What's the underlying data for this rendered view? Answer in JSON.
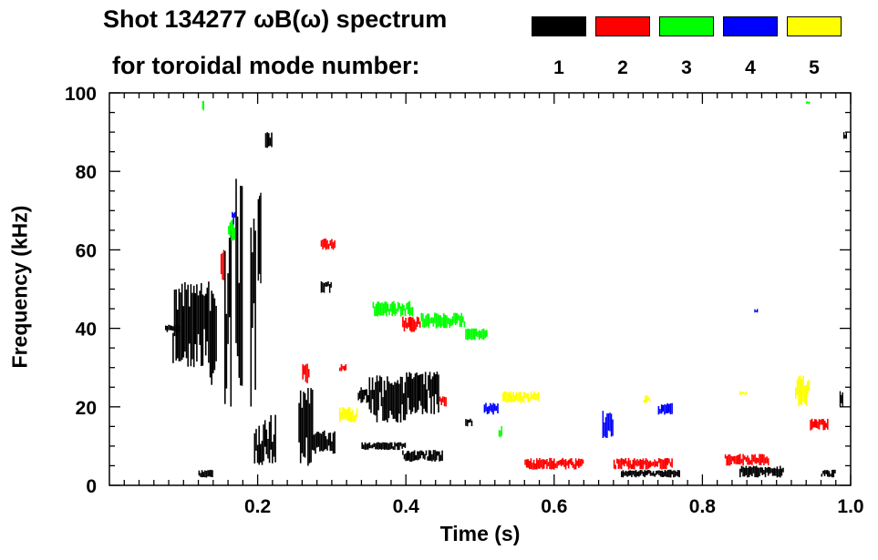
{
  "chart_data": {
    "type": "scatter",
    "title": "Shot 134277 ωB(ω) spectrum",
    "legend_title": "for toroidal mode number:",
    "xlabel": "Time (s)",
    "ylabel": "Frequency (kHz)",
    "xlim": [
      0.0,
      1.0
    ],
    "ylim": [
      0,
      100
    ],
    "xticks": [
      0.2,
      0.4,
      0.6,
      0.8,
      1.0
    ],
    "xtick_labels": [
      "0.2",
      "0.4",
      "0.6",
      "0.8",
      "1.0"
    ],
    "yticks": [
      0,
      20,
      40,
      60,
      80,
      100
    ],
    "ytick_labels": [
      "0",
      "20",
      "40",
      "60",
      "80",
      "100"
    ],
    "legend_position": "top-right",
    "series": [
      {
        "name": "1",
        "color": "#000000",
        "blobs": [
          {
            "t0": 0.085,
            "t1": 0.135,
            "f0": 30,
            "f1": 52
          },
          {
            "t0": 0.075,
            "t1": 0.095,
            "f0": 39,
            "f1": 41
          },
          {
            "t0": 0.135,
            "t1": 0.145,
            "f0": 25,
            "f1": 50
          },
          {
            "t0": 0.155,
            "t1": 0.165,
            "f0": 20,
            "f1": 65
          },
          {
            "t0": 0.17,
            "t1": 0.18,
            "f0": 25,
            "f1": 80
          },
          {
            "t0": 0.19,
            "t1": 0.198,
            "f0": 14,
            "f1": 68
          },
          {
            "t0": 0.2,
            "t1": 0.205,
            "f0": 50,
            "f1": 75
          },
          {
            "t0": 0.195,
            "t1": 0.225,
            "f0": 5,
            "f1": 18
          },
          {
            "t0": 0.21,
            "t1": 0.22,
            "f0": 86,
            "f1": 90
          },
          {
            "t0": 0.255,
            "t1": 0.275,
            "f0": 5,
            "f1": 25
          },
          {
            "t0": 0.275,
            "t1": 0.305,
            "f0": 8,
            "f1": 14
          },
          {
            "t0": 0.285,
            "t1": 0.3,
            "f0": 49,
            "f1": 52
          },
          {
            "t0": 0.335,
            "t1": 0.35,
            "f0": 21,
            "f1": 25
          },
          {
            "t0": 0.35,
            "t1": 0.4,
            "f0": 16,
            "f1": 28
          },
          {
            "t0": 0.4,
            "t1": 0.445,
            "f0": 18,
            "f1": 29
          },
          {
            "t0": 0.34,
            "t1": 0.4,
            "f0": 9,
            "f1": 11
          },
          {
            "t0": 0.395,
            "t1": 0.45,
            "f0": 6,
            "f1": 9
          },
          {
            "t0": 0.12,
            "t1": 0.14,
            "f0": 2,
            "f1": 4
          },
          {
            "t0": 0.48,
            "t1": 0.49,
            "f0": 15,
            "f1": 17
          },
          {
            "t0": 0.69,
            "t1": 0.77,
            "f0": 2,
            "f1": 4
          },
          {
            "t0": 0.85,
            "t1": 0.91,
            "f0": 2,
            "f1": 5
          },
          {
            "t0": 0.96,
            "t1": 0.98,
            "f0": 2,
            "f1": 4
          },
          {
            "t0": 0.985,
            "t1": 0.99,
            "f0": 20,
            "f1": 24
          },
          {
            "t0": 0.99,
            "t1": 0.995,
            "f0": 88,
            "f1": 90
          }
        ]
      },
      {
        "name": "2",
        "color": "#ff0000",
        "blobs": [
          {
            "t0": 0.285,
            "t1": 0.305,
            "f0": 60,
            "f1": 63
          },
          {
            "t0": 0.26,
            "t1": 0.27,
            "f0": 26,
            "f1": 31
          },
          {
            "t0": 0.395,
            "t1": 0.42,
            "f0": 39,
            "f1": 43
          },
          {
            "t0": 0.445,
            "t1": 0.455,
            "f0": 20,
            "f1": 23
          },
          {
            "t0": 0.56,
            "t1": 0.64,
            "f0": 4,
            "f1": 7
          },
          {
            "t0": 0.68,
            "t1": 0.76,
            "f0": 4,
            "f1": 7
          },
          {
            "t0": 0.83,
            "t1": 0.89,
            "f0": 5,
            "f1": 8
          },
          {
            "t0": 0.945,
            "t1": 0.97,
            "f0": 14,
            "f1": 17
          },
          {
            "t0": 0.15,
            "t1": 0.155,
            "f0": 52,
            "f1": 60
          },
          {
            "t0": 0.31,
            "t1": 0.32,
            "f0": 29,
            "f1": 31
          }
        ]
      },
      {
        "name": "3",
        "color": "#00ff00",
        "blobs": [
          {
            "t0": 0.355,
            "t1": 0.41,
            "f0": 43,
            "f1": 47
          },
          {
            "t0": 0.42,
            "t1": 0.48,
            "f0": 40,
            "f1": 44
          },
          {
            "t0": 0.48,
            "t1": 0.51,
            "f0": 37,
            "f1": 40
          },
          {
            "t0": 0.16,
            "t1": 0.17,
            "f0": 62,
            "f1": 68
          },
          {
            "t0": 0.125,
            "t1": 0.128,
            "f0": 95,
            "f1": 99
          },
          {
            "t0": 0.94,
            "t1": 0.945,
            "f0": 97,
            "f1": 98
          },
          {
            "t0": 0.525,
            "t1": 0.53,
            "f0": 12,
            "f1": 16
          }
        ]
      },
      {
        "name": "4",
        "color": "#0000ff",
        "blobs": [
          {
            "t0": 0.505,
            "t1": 0.525,
            "f0": 18,
            "f1": 21
          },
          {
            "t0": 0.665,
            "t1": 0.68,
            "f0": 12,
            "f1": 19
          },
          {
            "t0": 0.74,
            "t1": 0.76,
            "f0": 18,
            "f1": 21
          },
          {
            "t0": 0.87,
            "t1": 0.875,
            "f0": 44,
            "f1": 45
          },
          {
            "t0": 0.165,
            "t1": 0.17,
            "f0": 66,
            "f1": 70
          }
        ]
      },
      {
        "name": "5",
        "color": "#ffff00",
        "blobs": [
          {
            "t0": 0.31,
            "t1": 0.335,
            "f0": 16,
            "f1": 20
          },
          {
            "t0": 0.53,
            "t1": 0.58,
            "f0": 21,
            "f1": 24
          },
          {
            "t0": 0.72,
            "t1": 0.73,
            "f0": 21,
            "f1": 23
          },
          {
            "t0": 0.85,
            "t1": 0.86,
            "f0": 23,
            "f1": 24
          },
          {
            "t0": 0.925,
            "t1": 0.945,
            "f0": 20,
            "f1": 28
          }
        ]
      }
    ]
  },
  "legend": [
    {
      "label": "1",
      "color": "#000000"
    },
    {
      "label": "2",
      "color": "#ff0000"
    },
    {
      "label": "3",
      "color": "#00ff00"
    },
    {
      "label": "4",
      "color": "#0000ff"
    },
    {
      "label": "5",
      "color": "#ffff00"
    }
  ]
}
